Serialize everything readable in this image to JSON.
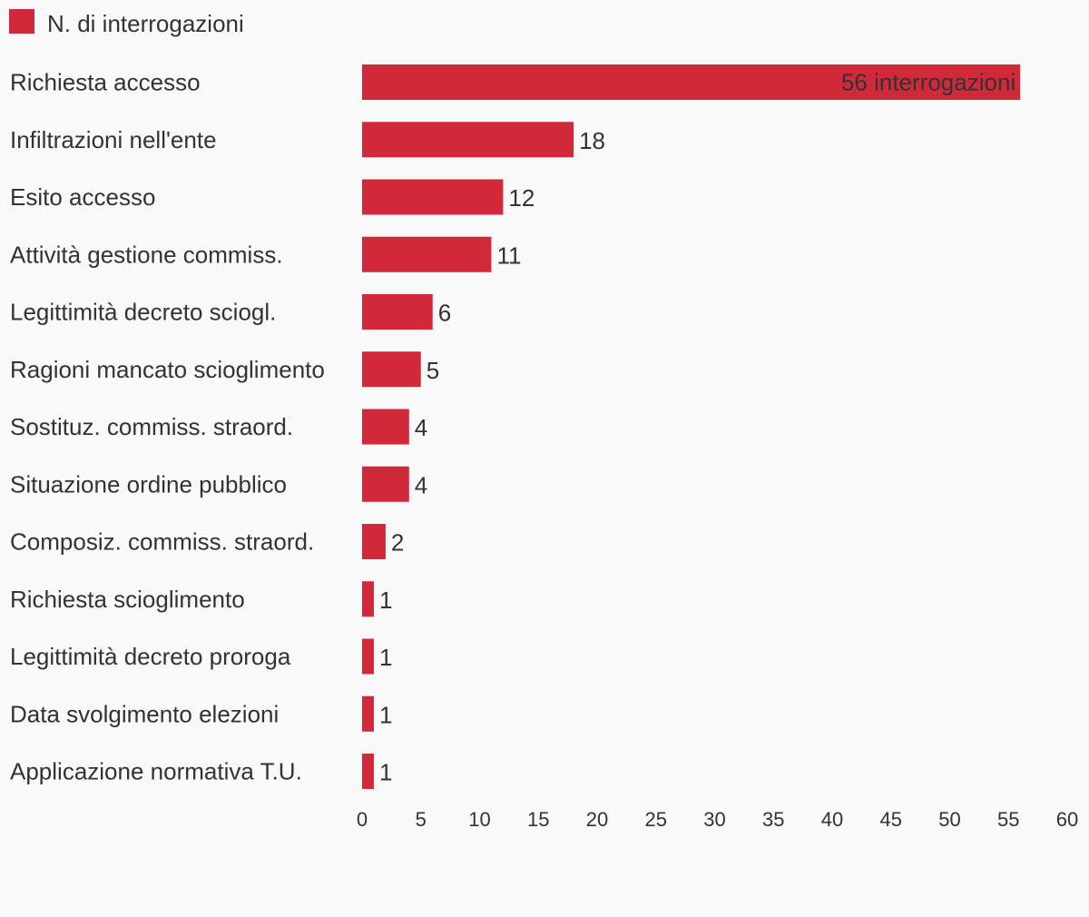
{
  "chart_data": {
    "type": "bar",
    "orientation": "horizontal",
    "legend": {
      "position": "top-left",
      "entries": [
        {
          "label": "N. di interrogazioni",
          "color": "#d0293a"
        }
      ]
    },
    "series": [
      {
        "name": "N. di interrogazioni",
        "color": "#d0293a"
      }
    ],
    "categories": [
      "Richiesta accesso",
      "Infiltrazioni nell'ente",
      "Esito accesso",
      "Attività gestione commiss.",
      "Legittimità decreto sciogl.",
      "Ragioni mancato scioglimento",
      "Sostituz. commiss. straord.",
      "Situazione ordine pubblico",
      "Composiz. commiss. straord.",
      "Richiesta scioglimento",
      "Legittimità decreto proroga",
      "Data svolgimento elezioni",
      "Applicazione normativa T.U."
    ],
    "values": [
      56,
      18,
      12,
      11,
      6,
      5,
      4,
      4,
      2,
      1,
      1,
      1,
      1
    ],
    "value_labels": [
      "56 interrogazioni",
      "18",
      "12",
      "11",
      "6",
      "5",
      "4",
      "4",
      "2",
      "1",
      "1",
      "1",
      "1"
    ],
    "xlim": [
      0,
      60
    ],
    "xticks": [
      0,
      5,
      10,
      15,
      20,
      25,
      30,
      35,
      40,
      45,
      50,
      55,
      60
    ],
    "grid": false,
    "title": "",
    "xlabel": "",
    "ylabel": ""
  }
}
